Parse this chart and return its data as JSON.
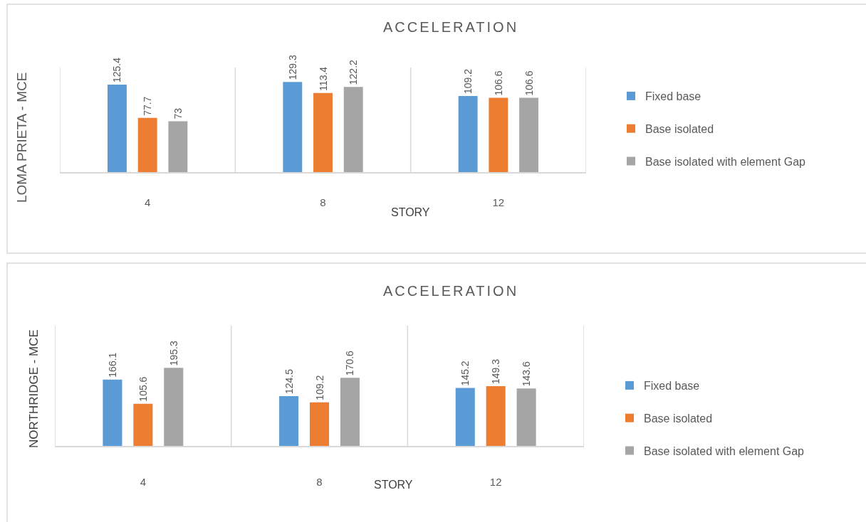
{
  "chart_data": [
    {
      "type": "bar",
      "title": "ACCELERATION",
      "xlabel": "STORY",
      "ylabel": "LOMA PRIETA - MCE",
      "categories": [
        "4",
        "8",
        "12"
      ],
      "series": [
        {
          "name": "Fixed base",
          "color": "#5b9bd5",
          "values": [
            125.4,
            129.3,
            109.2
          ]
        },
        {
          "name": "Base isolated",
          "color": "#ed7d31",
          "values": [
            77.7,
            113.4,
            106.6
          ]
        },
        {
          "name": "Base isolated with element Gap",
          "color": "#a5a5a5",
          "values": [
            73,
            122.2,
            106.6
          ]
        }
      ],
      "data_labels": true,
      "legend": "right",
      "grid": "x",
      "tick_labels": "x"
    },
    {
      "type": "bar",
      "title": "ACCELERATION",
      "xlabel": "STORY",
      "ylabel": "NORTHRIDGE - MCE",
      "categories": [
        "4",
        "8",
        "12"
      ],
      "series": [
        {
          "name": "Fixed base",
          "color": "#5b9bd5",
          "values": [
            166.1,
            124.5,
            145.2
          ]
        },
        {
          "name": "Base isolated",
          "color": "#ed7d31",
          "values": [
            105.6,
            109.2,
            149.3
          ]
        },
        {
          "name": "Base isolated with element Gap",
          "color": "#a5a5a5",
          "values": [
            195.3,
            170.6,
            143.6
          ]
        }
      ],
      "data_labels": true,
      "legend": "right",
      "grid": "x",
      "tick_labels": "x"
    }
  ]
}
